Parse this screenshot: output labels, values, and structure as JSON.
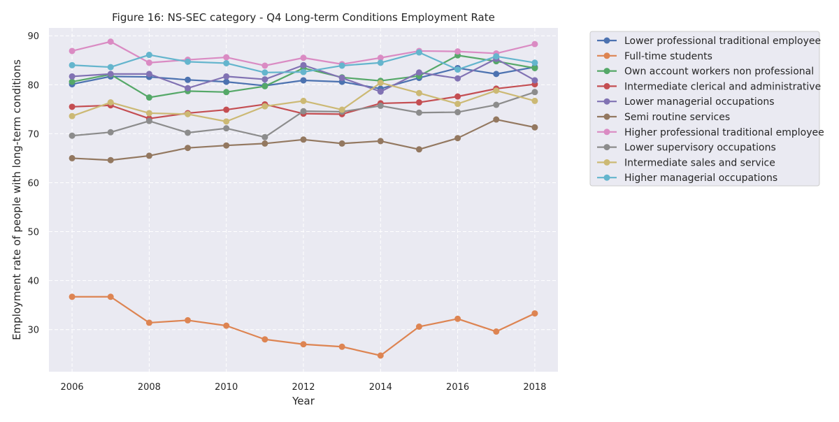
{
  "chart_data": {
    "type": "line",
    "title": "Figure 16: NS-SEC category - Q4 Long-term Conditions Employment Rate",
    "xlabel": "Year",
    "ylabel": "Employment rate of people with long-term conditions",
    "x": [
      2006,
      2007,
      2008,
      2009,
      2010,
      2011,
      2012,
      2013,
      2014,
      2015,
      2016,
      2017,
      2018
    ],
    "xlim": [
      2005.4,
      2018.6
    ],
    "ylim": [
      21.4,
      91.6
    ],
    "x_ticks": [
      "2006",
      "2008",
      "2010",
      "2012",
      "2014",
      "2016",
      "2018"
    ],
    "y_ticks": [
      "30",
      "40",
      "50",
      "60",
      "70",
      "80",
      "90"
    ],
    "grid": true,
    "legend_position": "outside-right",
    "series": [
      {
        "name": "Lower professional traditional employee",
        "color": "#4c72b0",
        "values": [
          80.1,
          81.7,
          81.6,
          81.0,
          80.6,
          79.8,
          80.9,
          80.6,
          79.2,
          81.4,
          83.4,
          82.2,
          83.6
        ]
      },
      {
        "name": "Full-time students",
        "color": "#dd8452",
        "values": [
          36.7,
          36.7,
          31.4,
          31.9,
          30.8,
          28.0,
          27.0,
          26.5,
          24.7,
          30.6,
          32.2,
          29.6,
          33.3
        ]
      },
      {
        "name": "Own account workers non professional",
        "color": "#55a868",
        "values": [
          80.6,
          82.1,
          77.4,
          78.7,
          78.5,
          79.7,
          83.4,
          81.5,
          80.8,
          81.8,
          86.0,
          84.8,
          83.4
        ]
      },
      {
        "name": "Intermediate clerical and administrative",
        "color": "#c44e52",
        "values": [
          75.5,
          75.8,
          73.1,
          74.2,
          74.9,
          76.0,
          74.1,
          74.0,
          76.2,
          76.4,
          77.6,
          79.2,
          80.1
        ]
      },
      {
        "name": "Lower managerial occupations",
        "color": "#8172b3",
        "values": [
          81.7,
          82.2,
          82.2,
          79.3,
          81.7,
          81.1,
          84.0,
          81.4,
          78.6,
          82.5,
          81.3,
          85.3,
          80.9
        ]
      },
      {
        "name": "Semi routine services",
        "color": "#937860",
        "values": [
          65.0,
          64.6,
          65.5,
          67.1,
          67.6,
          68.0,
          68.8,
          68.0,
          68.5,
          66.8,
          69.1,
          72.9,
          71.3
        ]
      },
      {
        "name": "Higher professional traditional employee",
        "color": "#da8bc3",
        "values": [
          86.9,
          88.8,
          84.5,
          85.1,
          85.6,
          83.9,
          85.5,
          84.2,
          85.5,
          86.9,
          86.8,
          86.4,
          88.3
        ]
      },
      {
        "name": "Lower supervisory occupations",
        "color": "#8c8c8c",
        "values": [
          69.6,
          70.3,
          72.6,
          70.2,
          71.1,
          69.3,
          74.6,
          74.5,
          75.7,
          74.3,
          74.4,
          75.9,
          78.5
        ]
      },
      {
        "name": "Intermediate sales and service",
        "color": "#ccb974",
        "values": [
          73.6,
          76.4,
          74.2,
          74.0,
          72.5,
          75.6,
          76.7,
          74.9,
          80.4,
          78.3,
          76.1,
          78.8,
          76.7
        ]
      },
      {
        "name": "Higher managerial occupations",
        "color": "#64b5cd",
        "values": [
          84.0,
          83.6,
          86.1,
          84.7,
          84.4,
          82.5,
          82.6,
          83.9,
          84.5,
          86.6,
          83.1,
          85.8,
          84.5
        ]
      }
    ]
  }
}
